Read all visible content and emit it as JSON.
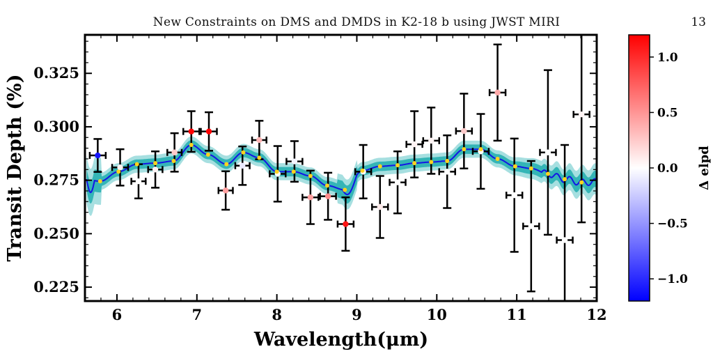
{
  "header": {
    "running_title": "New Constraints on DMS and DMDS in K2-18 b using JWST MIRI",
    "page_number": "13"
  },
  "chart_data": {
    "type": "scatter",
    "xlabel": "Wavelength(μm)",
    "ylabel": "Transit Depth (%)",
    "xlim": [
      5.6,
      12.0
    ],
    "ylim": [
      0.2185,
      0.343
    ],
    "xticks": [
      6,
      7,
      8,
      9,
      10,
      11,
      12
    ],
    "yticks": [
      0.225,
      0.25,
      0.275,
      0.3,
      0.325
    ],
    "xtick_labels": [
      "6",
      "7",
      "8",
      "9",
      "10",
      "11",
      "12"
    ],
    "ytick_labels": [
      "0.225",
      "0.250",
      "0.275",
      "0.300",
      "0.325"
    ],
    "colorbar": {
      "label": "Δ elpd",
      "range": [
        -1.2,
        1.2
      ],
      "ticks": [
        -1.0,
        -0.5,
        0.0,
        0.5,
        1.0
      ],
      "tick_labels": [
        "−1.0",
        "−0.5",
        "0.0",
        "0.5",
        "1.0"
      ],
      "colormap": "bwr",
      "low_color": "#0000ff",
      "mid_color": "#ffffff",
      "high_color": "#ff0000"
    },
    "band_colors": {
      "outer": "#a6dfe0",
      "inner": "#34b5b6",
      "model_line": "#1414e6",
      "binned_model": "#ffd21f"
    },
    "data_points": [
      {
        "x": 5.76,
        "xerr": 0.1,
        "y": 0.2866,
        "yerr": 0.0077,
        "delpd": -1.1
      },
      {
        "x": 6.04,
        "xerr": 0.1,
        "y": 0.281,
        "yerr": 0.0085,
        "delpd": 0.05
      },
      {
        "x": 6.27,
        "xerr": 0.09,
        "y": 0.2745,
        "yerr": 0.008,
        "delpd": 0.0
      },
      {
        "x": 6.48,
        "xerr": 0.09,
        "y": 0.28,
        "yerr": 0.0085,
        "delpd": 0.05
      },
      {
        "x": 6.72,
        "xerr": 0.09,
        "y": 0.288,
        "yerr": 0.009,
        "delpd": 0.25
      },
      {
        "x": 6.93,
        "xerr": 0.1,
        "y": 0.2978,
        "yerr": 0.0095,
        "delpd": 1.2
      },
      {
        "x": 7.15,
        "xerr": 0.1,
        "y": 0.2978,
        "yerr": 0.009,
        "delpd": 1.2
      },
      {
        "x": 7.36,
        "xerr": 0.09,
        "y": 0.2702,
        "yerr": 0.009,
        "delpd": 0.45
      },
      {
        "x": 7.57,
        "xerr": 0.09,
        "y": 0.2818,
        "yerr": 0.009,
        "delpd": -0.1
      },
      {
        "x": 7.78,
        "xerr": 0.09,
        "y": 0.2938,
        "yerr": 0.009,
        "delpd": 0.35
      },
      {
        "x": 8.01,
        "xerr": 0.1,
        "y": 0.278,
        "yerr": 0.013,
        "delpd": 0.0
      },
      {
        "x": 8.22,
        "xerr": 0.1,
        "y": 0.2838,
        "yerr": 0.0095,
        "delpd": -0.05
      },
      {
        "x": 8.42,
        "xerr": 0.1,
        "y": 0.267,
        "yerr": 0.0125,
        "delpd": 0.45
      },
      {
        "x": 8.64,
        "xerr": 0.1,
        "y": 0.2675,
        "yerr": 0.011,
        "delpd": 0.55
      },
      {
        "x": 8.86,
        "xerr": 0.1,
        "y": 0.2545,
        "yerr": 0.0125,
        "delpd": 1.1
      },
      {
        "x": 9.08,
        "xerr": 0.1,
        "y": 0.279,
        "yerr": 0.0125,
        "delpd": 0.0
      },
      {
        "x": 9.29,
        "xerr": 0.1,
        "y": 0.2625,
        "yerr": 0.0145,
        "delpd": 0.1
      },
      {
        "x": 9.51,
        "xerr": 0.1,
        "y": 0.274,
        "yerr": 0.0145,
        "delpd": 0.0
      },
      {
        "x": 9.72,
        "xerr": 0.1,
        "y": 0.2918,
        "yerr": 0.0155,
        "delpd": 0.05
      },
      {
        "x": 9.93,
        "xerr": 0.1,
        "y": 0.2935,
        "yerr": 0.0155,
        "delpd": 0.05
      },
      {
        "x": 10.13,
        "xerr": 0.1,
        "y": 0.279,
        "yerr": 0.017,
        "delpd": 0.0
      },
      {
        "x": 10.34,
        "xerr": 0.1,
        "y": 0.298,
        "yerr": 0.0175,
        "delpd": 0.25
      },
      {
        "x": 10.55,
        "xerr": 0.1,
        "y": 0.2885,
        "yerr": 0.0175,
        "delpd": 0.0
      },
      {
        "x": 10.76,
        "xerr": 0.1,
        "y": 0.316,
        "yerr": 0.0225,
        "delpd": 0.4
      },
      {
        "x": 10.97,
        "xerr": 0.1,
        "y": 0.268,
        "yerr": 0.0265,
        "delpd": 0.0
      },
      {
        "x": 11.18,
        "xerr": 0.1,
        "y": 0.2535,
        "yerr": 0.0305,
        "delpd": 0.0
      },
      {
        "x": 11.39,
        "xerr": 0.1,
        "y": 0.288,
        "yerr": 0.0385,
        "delpd": 0.0
      },
      {
        "x": 11.6,
        "xerr": 0.1,
        "y": 0.247,
        "yerr": 0.0445,
        "delpd": 0.0
      },
      {
        "x": 11.81,
        "xerr": 0.1,
        "y": 0.3058,
        "yerr": 0.0505,
        "delpd": 0.05
      }
    ],
    "binned_model": [
      {
        "x": 5.79,
        "y": 0.2745
      },
      {
        "x": 6.02,
        "y": 0.279
      },
      {
        "x": 6.25,
        "y": 0.2825
      },
      {
        "x": 6.48,
        "y": 0.283
      },
      {
        "x": 6.71,
        "y": 0.284
      },
      {
        "x": 6.93,
        "y": 0.2915
      },
      {
        "x": 7.14,
        "y": 0.287
      },
      {
        "x": 7.37,
        "y": 0.2825
      },
      {
        "x": 7.58,
        "y": 0.288
      },
      {
        "x": 7.78,
        "y": 0.2855
      },
      {
        "x": 8.0,
        "y": 0.279
      },
      {
        "x": 8.21,
        "y": 0.279
      },
      {
        "x": 8.42,
        "y": 0.277
      },
      {
        "x": 8.63,
        "y": 0.2725
      },
      {
        "x": 8.85,
        "y": 0.2705
      },
      {
        "x": 9.07,
        "y": 0.2795
      },
      {
        "x": 9.29,
        "y": 0.2815
      },
      {
        "x": 9.51,
        "y": 0.282
      },
      {
        "x": 9.72,
        "y": 0.283
      },
      {
        "x": 9.93,
        "y": 0.2835
      },
      {
        "x": 10.13,
        "y": 0.284
      },
      {
        "x": 10.34,
        "y": 0.2895
      },
      {
        "x": 10.55,
        "y": 0.2895
      },
      {
        "x": 10.76,
        "y": 0.285
      },
      {
        "x": 10.98,
        "y": 0.2815
      },
      {
        "x": 11.18,
        "y": 0.2805
      },
      {
        "x": 11.39,
        "y": 0.278
      },
      {
        "x": 11.6,
        "y": 0.2755
      },
      {
        "x": 11.81,
        "y": 0.274
      }
    ]
  }
}
